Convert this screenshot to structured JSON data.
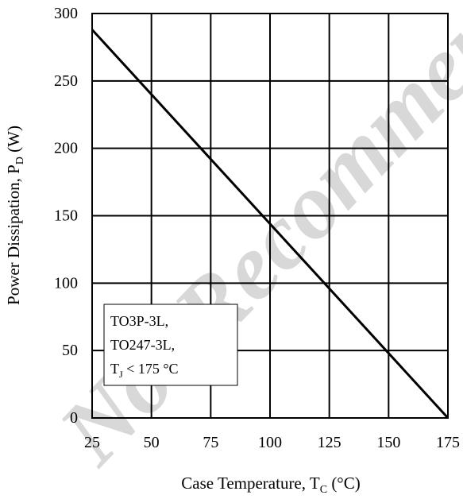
{
  "chart_data": {
    "type": "line",
    "xlabel": {
      "main": "Case Temperature, T",
      "sub": "C",
      "unit": " (°C)"
    },
    "ylabel": {
      "main": "Power Dissipation, P",
      "sub": "D",
      "unit": " (W)"
    },
    "xlim": [
      25,
      175
    ],
    "ylim": [
      0,
      300
    ],
    "x_ticks": [
      25,
      50,
      75,
      100,
      125,
      150,
      175
    ],
    "y_ticks": [
      0,
      50,
      100,
      150,
      200,
      250,
      300
    ],
    "grid": true,
    "series": [
      {
        "x": [
          25,
          175
        ],
        "y": [
          288,
          0
        ]
      }
    ],
    "legend_box": {
      "line1": "TO3P-3L,",
      "line2": "TO247-3L,",
      "line3_main": "T",
      "line3_sub": "J",
      "line3_rest": " < 175 °C"
    },
    "watermark": "Not Recommended"
  },
  "colors": {
    "line": "#000000",
    "grid": "#000000",
    "watermark": "#d8d8d8"
  }
}
